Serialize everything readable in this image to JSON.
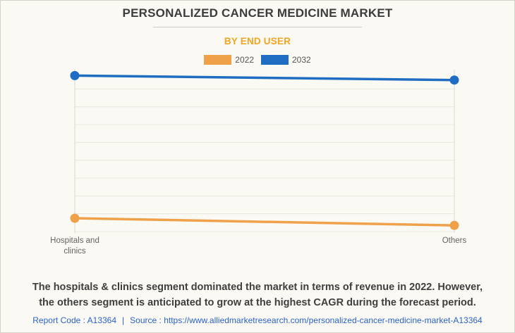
{
  "header": {
    "title": "PERSONALIZED CANCER MEDICINE MARKET",
    "subtitle": "BY END USER"
  },
  "legend": {
    "items": [
      {
        "label": "2022",
        "color": "#EFA14A"
      },
      {
        "label": "2032",
        "color": "#1F6DC2"
      }
    ]
  },
  "chart_data": {
    "type": "line",
    "title": "PERSONALIZED CANCER MEDICINE MARKET",
    "subtitle": "BY END USER",
    "categories": [
      "Hospitals and clinics",
      "Others"
    ],
    "series": [
      {
        "name": "2022",
        "color": "#EFA14A",
        "values": [
          0.75,
          0.35
        ]
      },
      {
        "name": "2032",
        "color": "#1F6DC2",
        "values": [
          8.75,
          8.5
        ]
      }
    ],
    "ylim": [
      0,
      9.2
    ],
    "grid": true,
    "gridline_interval": 1,
    "legend_position": "top",
    "axis_value_labels_visible": false,
    "values_unit": "relative grid units (numeric value axis is not labeled in the image)"
  },
  "description": {
    "line1": "The hospitals & clinics segment dominated the market in terms of revenue in 2022. However,",
    "line2": "the others segment is anticipated to grow at the highest CAGR during the forecast period."
  },
  "footer": {
    "report_code": "Report Code : A13364",
    "separator": "|",
    "source_label": "Source :",
    "source_url": "https://www.alliedmarketresearch.com/personalized-cancer-medicine-market-A13364"
  }
}
